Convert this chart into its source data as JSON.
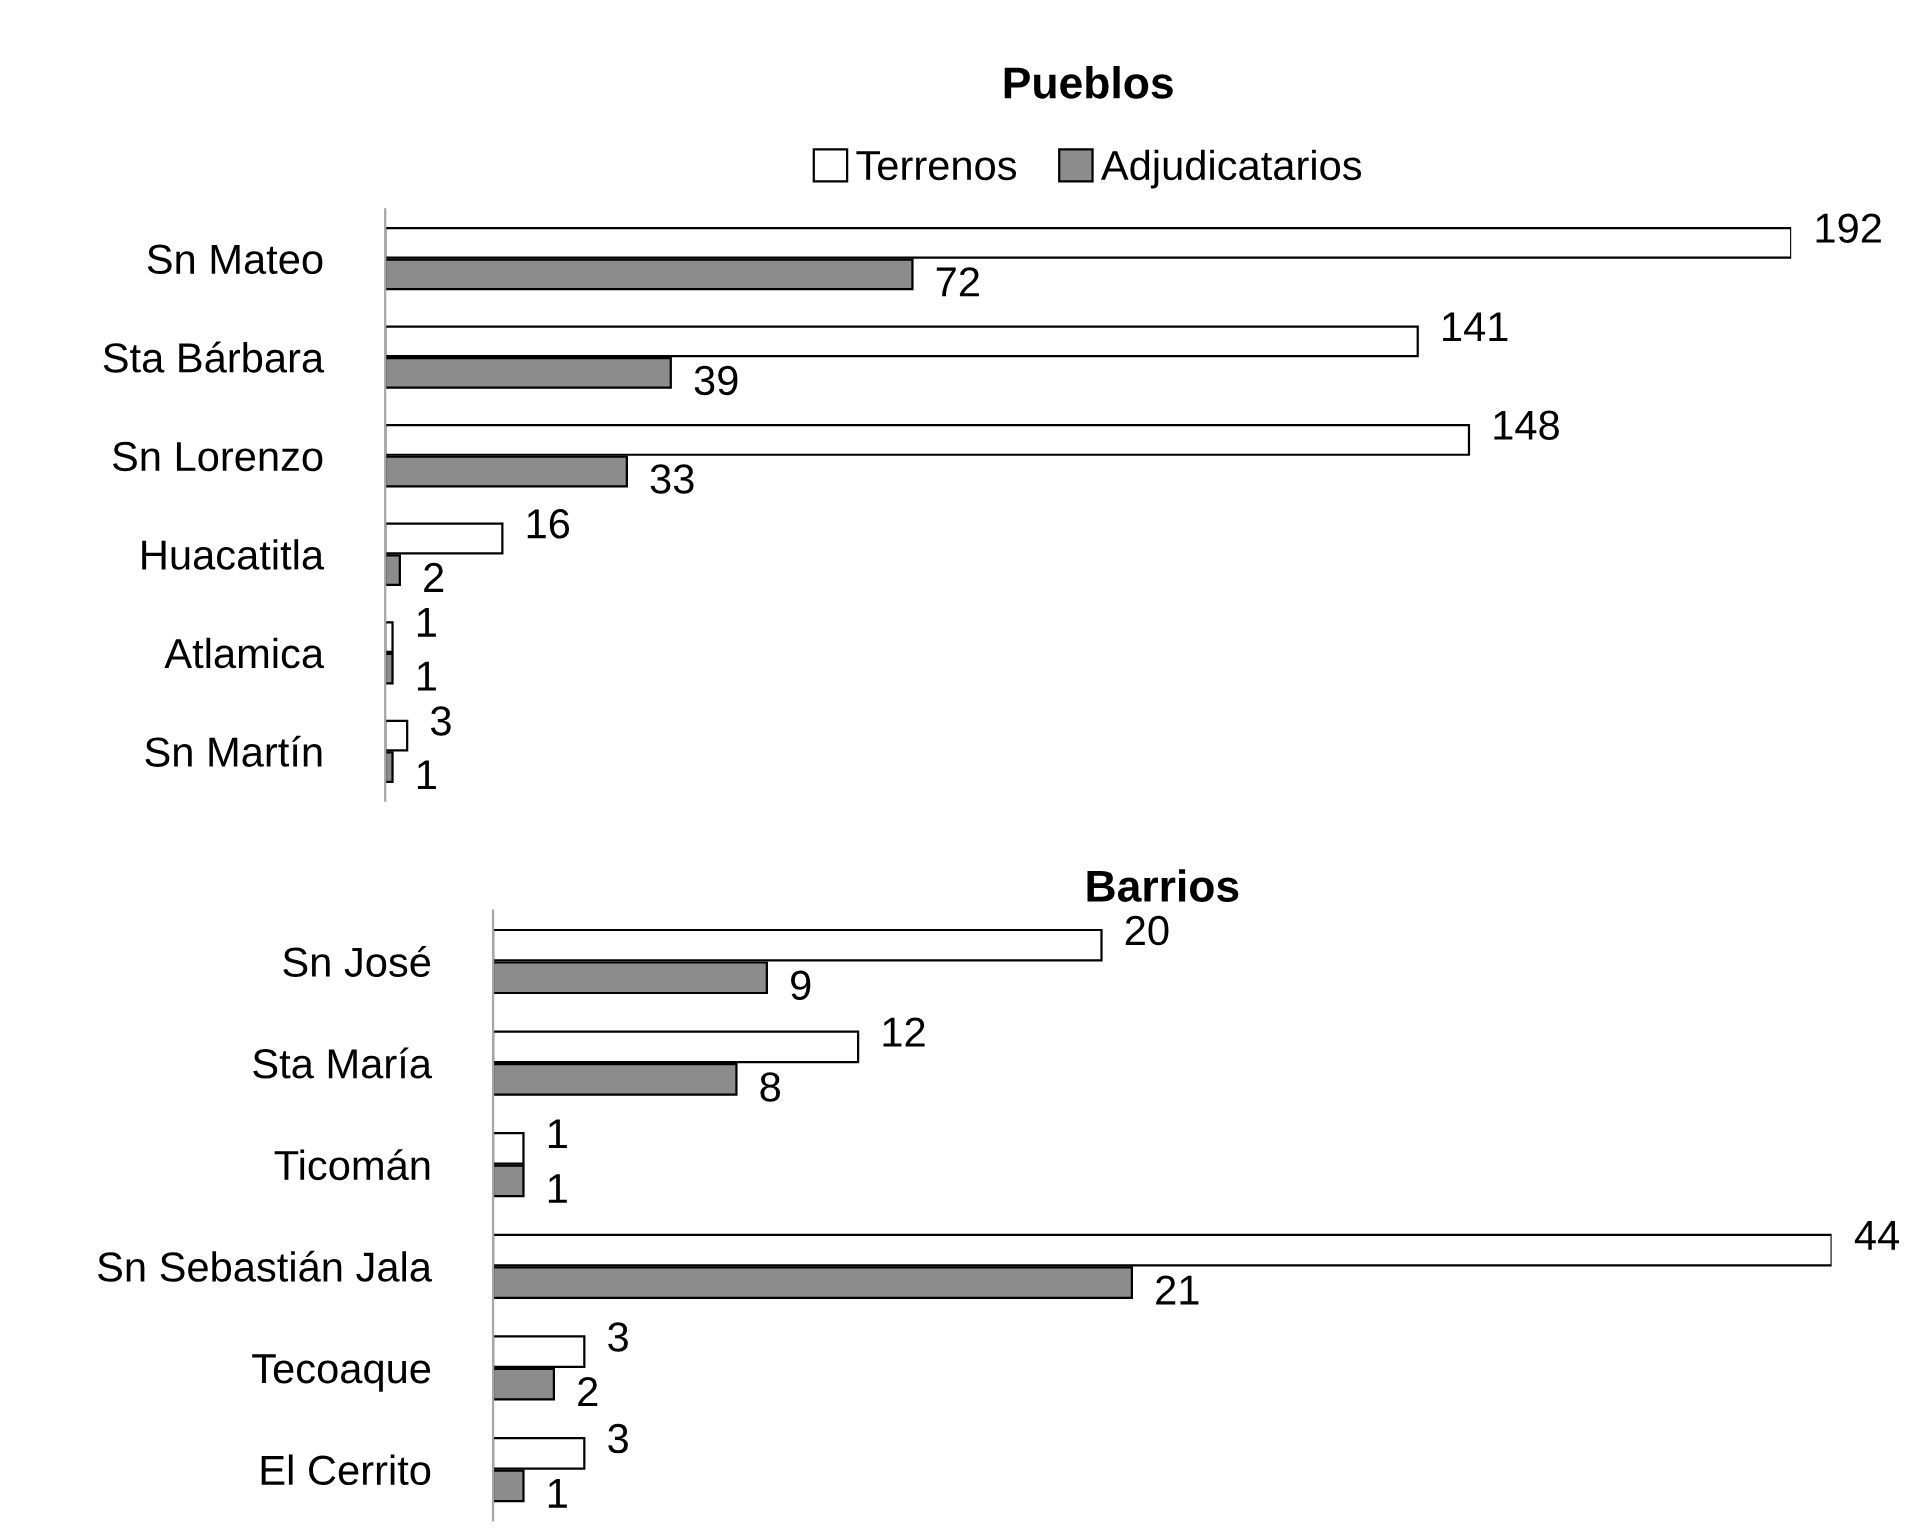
{
  "chart_data": [
    {
      "type": "bar",
      "orientation": "horizontal",
      "title": "Pueblos",
      "categories": [
        "Sn Mateo",
        "Sta Bárbara",
        "Sn Lorenzo",
        "Huacatitla",
        "Atlamica",
        "Sn Martín"
      ],
      "series": [
        {
          "name": "Terrenos",
          "color": "#ffffff",
          "values": [
            192,
            141,
            148,
            16,
            1,
            3
          ]
        },
        {
          "name": "Adjudicatarios",
          "color": "#8c8c8c",
          "values": [
            72,
            39,
            33,
            2,
            1,
            1
          ]
        }
      ],
      "data_labels": true,
      "legend": "top",
      "tick_labels": "y"
    },
    {
      "type": "bar",
      "orientation": "horizontal",
      "title": "Barrios",
      "categories": [
        "Sn José",
        "Sta María",
        "Ticomán",
        "Sn Sebastián Jala",
        "Tecoaque",
        "El Cerrito"
      ],
      "series": [
        {
          "color": "#ffffff",
          "values": [
            20,
            12,
            1,
            44,
            3,
            3
          ]
        },
        {
          "color": "#8c8c8c",
          "values": [
            9,
            8,
            1,
            21,
            2,
            1
          ]
        }
      ],
      "data_labels": true,
      "tick_labels": "y"
    }
  ]
}
